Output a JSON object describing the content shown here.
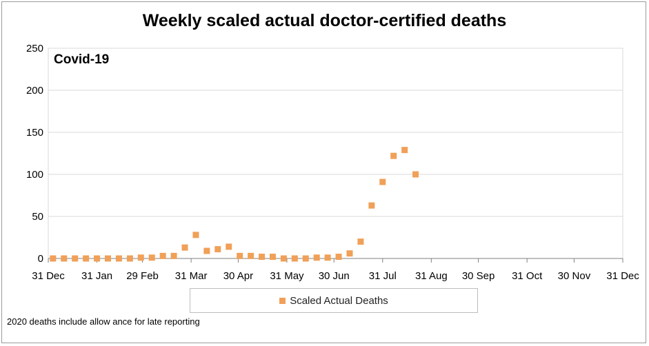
{
  "title": "Weekly scaled actual doctor-certified deaths",
  "panel_label": "Covid-19",
  "footnote": "2020 deaths include allow ance for late reporting",
  "colors": {
    "marker": "#f0a058",
    "grid": "#d9d9d9",
    "axis": "#808080"
  },
  "chart_data": {
    "type": "scatter",
    "title": "Weekly scaled actual doctor-certified deaths",
    "xlabel": "",
    "ylabel": "",
    "xlim": [
      "31 Dec",
      "31 Dec"
    ],
    "ylim": [
      0,
      250
    ],
    "y_ticks": [
      0,
      50,
      100,
      150,
      200,
      250
    ],
    "x_ticks": [
      "31 Dec",
      "31 Jan",
      "29 Feb",
      "31 Mar",
      "30 Apr",
      "31 May",
      "30 Jun",
      "31 Jul",
      "31 Aug",
      "30 Sep",
      "31 Oct",
      "30 Nov",
      "31 Dec"
    ],
    "grid": true,
    "legend_position": "bottom",
    "series": [
      {
        "name": "Scaled Actual Deaths",
        "points": [
          {
            "x": "3 Jan",
            "y": 0
          },
          {
            "x": "10 Jan",
            "y": 0
          },
          {
            "x": "17 Jan",
            "y": 0
          },
          {
            "x": "24 Jan",
            "y": 0
          },
          {
            "x": "31 Jan",
            "y": 0
          },
          {
            "x": "7 Feb",
            "y": 0
          },
          {
            "x": "14 Feb",
            "y": 0
          },
          {
            "x": "21 Feb",
            "y": 0
          },
          {
            "x": "28 Feb",
            "y": 1
          },
          {
            "x": "6 Mar",
            "y": 1
          },
          {
            "x": "13 Mar",
            "y": 3
          },
          {
            "x": "20 Mar",
            "y": 3
          },
          {
            "x": "27 Mar",
            "y": 13
          },
          {
            "x": "3 Apr",
            "y": 28
          },
          {
            "x": "10 Apr",
            "y": 9
          },
          {
            "x": "17 Apr",
            "y": 11
          },
          {
            "x": "24 Apr",
            "y": 14
          },
          {
            "x": "1 May",
            "y": 3
          },
          {
            "x": "8 May",
            "y": 3
          },
          {
            "x": "15 May",
            "y": 2
          },
          {
            "x": "22 May",
            "y": 2
          },
          {
            "x": "29 May",
            "y": 0
          },
          {
            "x": "5 Jun",
            "y": 0
          },
          {
            "x": "12 Jun",
            "y": 0
          },
          {
            "x": "19 Jun",
            "y": 1
          },
          {
            "x": "26 Jun",
            "y": 1
          },
          {
            "x": "3 Jul",
            "y": 2
          },
          {
            "x": "10 Jul",
            "y": 6
          },
          {
            "x": "17 Jul",
            "y": 20
          },
          {
            "x": "24 Jul",
            "y": 63
          },
          {
            "x": "31 Jul",
            "y": 91
          },
          {
            "x": "7 Aug",
            "y": 122
          },
          {
            "x": "14 Aug",
            "y": 129
          },
          {
            "x": "21 Aug",
            "y": 100
          }
        ]
      }
    ]
  }
}
